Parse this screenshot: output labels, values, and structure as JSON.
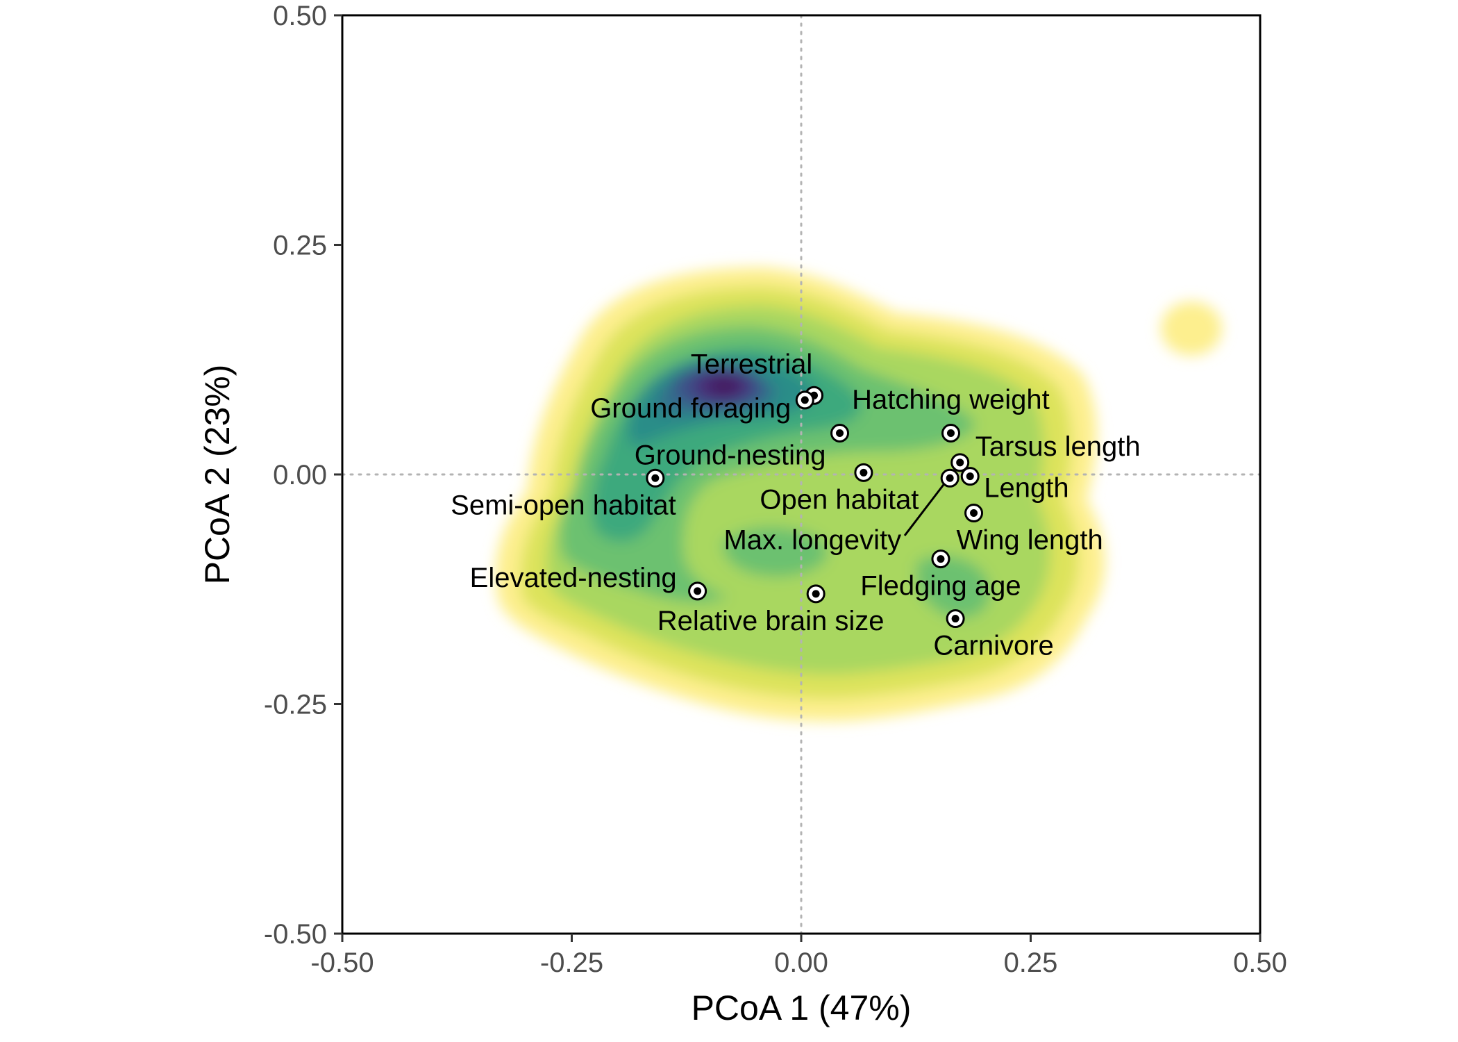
{
  "chart_data": {
    "type": "scatter",
    "title": "",
    "xlabel": "PCoA 1 (47%)",
    "ylabel": "PCoA 2 (23%)",
    "xlim": [
      -0.5,
      0.5
    ],
    "ylim": [
      -0.5,
      0.5
    ],
    "x_ticks": [
      -0.5,
      -0.25,
      0.0,
      0.25,
      0.5
    ],
    "y_ticks": [
      -0.5,
      -0.25,
      0.0,
      0.25,
      0.5
    ],
    "x_tick_labels": [
      "-0.50",
      "-0.25",
      "0.00",
      "0.25",
      "0.50"
    ],
    "y_tick_labels": [
      "-0.50",
      "-0.25",
      "0.00",
      "0.25",
      "0.50"
    ],
    "reference_lines": {
      "x": 0.0,
      "y": 0.0,
      "style": "dotted",
      "color": "#b3b3b3"
    },
    "grid": false,
    "background_density": {
      "type": "filled-contour",
      "palette": "viridis-reversed",
      "colors": [
        "#fdef8e",
        "#dde35c",
        "#a9d761",
        "#6cc16f",
        "#3ea97d",
        "#2c8d88",
        "#32708c",
        "#3c5189",
        "#462f78",
        "#44125d"
      ],
      "peak_at": {
        "x": -0.085,
        "y": 0.1
      },
      "secondary_blob_at": {
        "x": 0.43,
        "y": 0.165
      }
    },
    "points": [
      {
        "label": "Terrestrial",
        "x": 0.014,
        "y": 0.086
      },
      {
        "label": "Ground foraging",
        "x": 0.004,
        "y": 0.081
      },
      {
        "label": "Hatching weight",
        "x": 0.163,
        "y": 0.045
      },
      {
        "label": "Ground-nesting",
        "x": 0.042,
        "y": 0.045
      },
      {
        "label": "Tarsus length",
        "x": 0.173,
        "y": 0.013
      },
      {
        "label": "Semi-open habitat",
        "x": -0.159,
        "y": -0.004
      },
      {
        "label": "Open habitat",
        "x": 0.068,
        "y": 0.002
      },
      {
        "label": "Length",
        "x": 0.184,
        "y": -0.002
      },
      {
        "label": "Max. longevity",
        "x": 0.162,
        "y": -0.004
      },
      {
        "label": "Wing length",
        "x": 0.188,
        "y": -0.042
      },
      {
        "label": "Fledging age",
        "x": 0.152,
        "y": -0.092
      },
      {
        "label": "Elevated-nesting",
        "x": -0.113,
        "y": -0.127
      },
      {
        "label": "Relative brain size",
        "x": 0.016,
        "y": -0.13
      },
      {
        "label": "Carnivore",
        "x": 0.168,
        "y": -0.157
      }
    ]
  }
}
